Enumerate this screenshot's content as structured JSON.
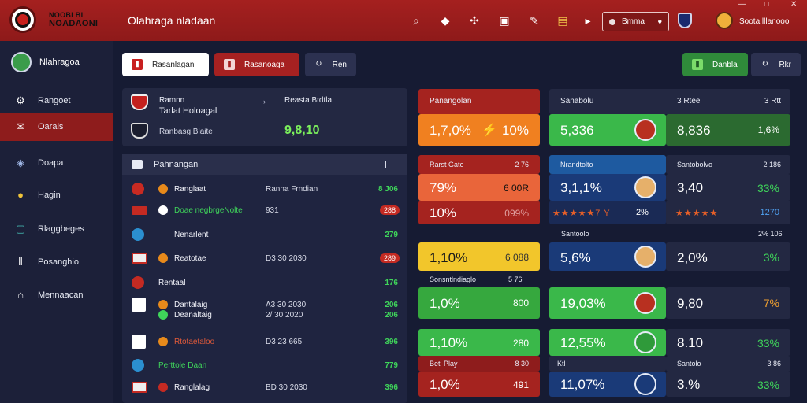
{
  "topbar": {
    "brand_line1": "NOOBI BI",
    "brand_line2": "NOADAONI",
    "title": "Olahraga nladaan",
    "select_label": "Bmma",
    "user_name": "Soota lllanooo"
  },
  "sidebar": {
    "profile_name": "Nlahragoa",
    "items": [
      {
        "label": "Rangoet",
        "icon": "robot-icon"
      },
      {
        "label": "Oarals",
        "icon": "chat-icon"
      },
      {
        "label": "Doapa",
        "icon": "shield-icon"
      },
      {
        "label": "Hagin",
        "icon": "ball-icon"
      },
      {
        "label": "Rlaggbeges",
        "icon": "trophy-icon"
      },
      {
        "label": "Posanghio",
        "icon": "stats-icon"
      },
      {
        "label": "Mennaacan",
        "icon": "home-icon"
      }
    ]
  },
  "toolbar": {
    "btn1": "Rasanlagan",
    "btn2": "Rasanoaga",
    "btn3": "Ren",
    "btn_right1": "Danbla",
    "btn_right2": "Rkr"
  },
  "match_panel": {
    "team1": "Ramnn",
    "team2": "Tarlat Holoagal",
    "subtitle": "Ranbasg Blaite",
    "col_label": "Reasta Btdtla",
    "score": "9,8,10"
  },
  "list": {
    "title": "Pahnangan",
    "rows": [
      {
        "name": "Ranglaat",
        "date": "Ranna Frndian",
        "val": "8 J06",
        "color": "#3fd55a"
      },
      {
        "name": "Doae  negbrgeNolte",
        "date": "931",
        "pill": "288"
      },
      {
        "name": "Nenarlent",
        "date": "",
        "val": "279",
        "color": "#3fd55a"
      },
      {
        "name": "Reatotae",
        "date": "D3 30 2030",
        "pill": "289"
      },
      {
        "name": "Rentaal",
        "date": "",
        "val": "176",
        "color": "#3fd55a"
      },
      {
        "name": "Dantalaig",
        "date": "A3 30 2030",
        "val": "206",
        "color": "#3fd55a"
      },
      {
        "name": "Deanaltaig",
        "date": "2/ 30 2020",
        "val": "206",
        "color": "#3fd55a"
      },
      {
        "name": "Rtotaetaloo",
        "date": "D3 23 665",
        "val": "396",
        "color": "#3fd55a"
      },
      {
        "name": "Perttole Daan",
        "date": "",
        "val": "779",
        "color": "#3fd55a"
      },
      {
        "name": "Ranglalag",
        "date": "BD 30 2030",
        "val": "396",
        "color": "#3fd55a"
      }
    ]
  },
  "grid": {
    "hdr1": "Panangolan",
    "hdr2": "Sanabolu",
    "hdr3": "3 Rtee",
    "hdr4": "3 Rtt",
    "t1a": "1,7,0%",
    "t1b": "10%",
    "t2a": "5,336",
    "t3a": "8,836",
    "t3b": "1,6%",
    "lbl_a": "Rarst Gate",
    "lbl_a2": "2 76",
    "lbl_b": "Nrandtolto",
    "lbl_c": "Santobolvo",
    "lbl_c2": "2 186",
    "t4a": "79%",
    "t4b": "6 00R",
    "t5a": "3,1,1%",
    "t6a": "3,40",
    "t6b": "33%",
    "t7a": "10%",
    "t7b": "099%",
    "stars1": "★★★★★7 Y",
    "stars1_val": "2%",
    "stars2": "★★★★★",
    "stars2_val": "1270",
    "lbl_d": "Santoolo",
    "lbl_d2": "2% 106",
    "t8a": "1,10%",
    "t8b": "6 088",
    "t9a": "5,6%",
    "t10a": "2,0%",
    "t10b": "3%",
    "lbl_e": "Sonsntlndiaglo",
    "lbl_e2": "5 76",
    "t11a": "1,0%",
    "t11b": "800",
    "t12a": "19,03%",
    "t13a": "9,80",
    "t13b": "7%",
    "t14a": "1,10%",
    "t14b": "280",
    "t15a": "12,55%",
    "t16a": "8.10",
    "t16b": "33%",
    "lbl_f": "Betl Play",
    "lbl_f2": "8 30",
    "lbl_g": "Ktl",
    "lbl_h": "Santolo",
    "lbl_h2": "3 86",
    "t17a": "1,0%",
    "t17b": "491",
    "t18a": "11,07%",
    "t19a": "3.%",
    "t19b": "33%"
  }
}
